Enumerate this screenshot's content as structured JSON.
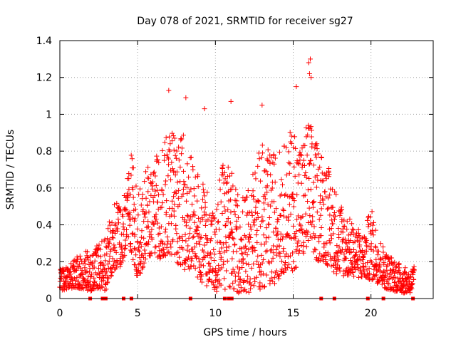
{
  "chart_data": {
    "type": "scatter",
    "title": "Day 078 of 2021, SRMTID for receiver sg27",
    "xlabel": "GPS time / hours",
    "ylabel": "SRMTID / TECUs",
    "xlim": [
      0,
      24
    ],
    "ylim": [
      0,
      1.4
    ],
    "xticks": [
      0,
      5,
      10,
      15,
      20
    ],
    "xtick_labels": [
      "0",
      "5",
      "10",
      "15",
      "20"
    ],
    "yticks": [
      0,
      0.2,
      0.4,
      0.6,
      0.8,
      1.0,
      1.2,
      1.4
    ],
    "ytick_labels": [
      "0",
      "0.2",
      "0.4",
      "0.6",
      "0.8",
      "1",
      "1.2",
      "1.4"
    ],
    "grid": "dotted",
    "marker": "+",
    "colors": {
      "series": "#ff0000",
      "axes": "#000000",
      "grid": "#a0a0a0"
    },
    "zero_markers_x": [
      1.95,
      2.75,
      2.95,
      4.1,
      4.6,
      8.4,
      10.6,
      10.85,
      11.05,
      16.8,
      17.65,
      19.8,
      20.8,
      22.7
    ],
    "envelope": [
      [
        0.0,
        0.16,
        0.04
      ],
      [
        0.5,
        0.17,
        0.05
      ],
      [
        1.0,
        0.22,
        0.06
      ],
      [
        1.5,
        0.26,
        0.05
      ],
      [
        2.0,
        0.25,
        0.04
      ],
      [
        2.5,
        0.3,
        0.05
      ],
      [
        3.0,
        0.33,
        0.04
      ],
      [
        3.2,
        0.45,
        0.1
      ],
      [
        3.5,
        0.53,
        0.15
      ],
      [
        4.0,
        0.5,
        0.18
      ],
      [
        4.4,
        0.7,
        0.3
      ],
      [
        4.6,
        0.8,
        0.25
      ],
      [
        5.0,
        0.55,
        0.1
      ],
      [
        5.5,
        0.7,
        0.2
      ],
      [
        6.0,
        0.75,
        0.25
      ],
      [
        6.5,
        0.82,
        0.2
      ],
      [
        7.0,
        0.95,
        0.25
      ],
      [
        7.5,
        0.85,
        0.2
      ],
      [
        8.0,
        0.9,
        0.15
      ],
      [
        8.5,
        0.75,
        0.15
      ],
      [
        9.0,
        0.65,
        0.1
      ],
      [
        9.5,
        0.6,
        0.05
      ],
      [
        10.0,
        0.45,
        0.02
      ],
      [
        10.5,
        0.8,
        0.05
      ],
      [
        11.0,
        0.7,
        0.05
      ],
      [
        11.5,
        0.6,
        0.03
      ],
      [
        12.0,
        0.55,
        0.02
      ],
      [
        12.5,
        0.75,
        0.05
      ],
      [
        13.0,
        0.85,
        0.05
      ],
      [
        13.5,
        0.8,
        0.05
      ],
      [
        14.0,
        0.8,
        0.1
      ],
      [
        14.5,
        0.85,
        0.15
      ],
      [
        15.0,
        0.95,
        0.15
      ],
      [
        15.5,
        0.85,
        0.2
      ],
      [
        16.0,
        1.0,
        0.25
      ],
      [
        16.5,
        0.85,
        0.2
      ],
      [
        17.0,
        0.8,
        0.2
      ],
      [
        17.5,
        0.65,
        0.15
      ],
      [
        18.0,
        0.55,
        0.12
      ],
      [
        18.5,
        0.45,
        0.12
      ],
      [
        19.0,
        0.4,
        0.12
      ],
      [
        19.5,
        0.35,
        0.1
      ],
      [
        20.0,
        0.5,
        0.1
      ],
      [
        20.5,
        0.35,
        0.08
      ],
      [
        21.0,
        0.25,
        0.05
      ],
      [
        21.5,
        0.22,
        0.04
      ],
      [
        22.0,
        0.18,
        0.03
      ],
      [
        22.5,
        0.15,
        0.03
      ],
      [
        22.8,
        0.2,
        0.03
      ]
    ],
    "outliers": [
      [
        7.0,
        1.13
      ],
      [
        8.1,
        1.09
      ],
      [
        9.3,
        1.03
      ],
      [
        11.0,
        1.07
      ],
      [
        13.0,
        1.05
      ],
      [
        15.2,
        1.15
      ],
      [
        16.0,
        1.28
      ],
      [
        16.1,
        1.3
      ],
      [
        16.05,
        1.22
      ],
      [
        16.15,
        1.2
      ]
    ]
  }
}
